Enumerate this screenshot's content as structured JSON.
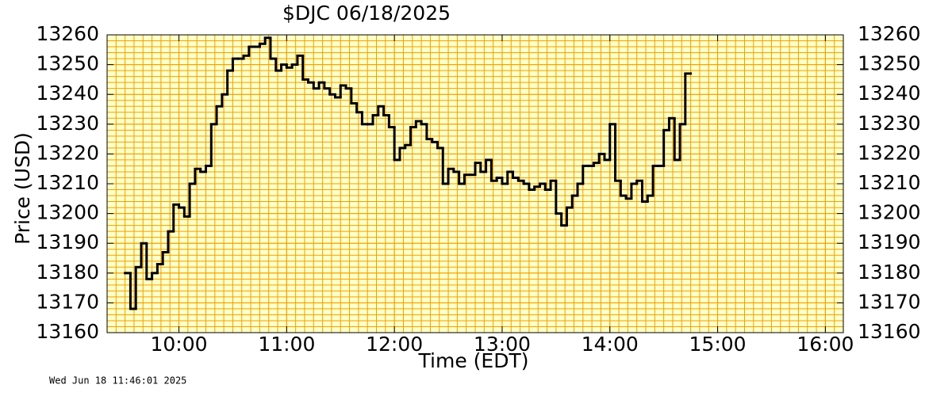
{
  "chart_data": {
    "type": "step",
    "title": "$DJC  06/18/2025",
    "x_label": "Time (EDT)",
    "y_label": "Price (USD)",
    "timestamp": "Wed Jun 18 11:46:01 2025",
    "color": "#000000",
    "grid": true,
    "grid_color": "#f0a000",
    "plot_background": "#ffffc8",
    "x_minor_step_minutes": 5,
    "y_minor_step": 2,
    "xlim": [
      "09:20",
      "16:10"
    ],
    "xticks": [
      "10:00",
      "11:00",
      "12:00",
      "13:00",
      "14:00",
      "15:00",
      "16:00"
    ],
    "ylim": [
      13160,
      13260
    ],
    "yticks": [
      13160,
      13170,
      13180,
      13190,
      13200,
      13210,
      13220,
      13230,
      13240,
      13250,
      13260
    ],
    "x": [
      "09:30",
      "09:33",
      "09:36",
      "09:39",
      "09:42",
      "09:45",
      "09:48",
      "09:51",
      "09:54",
      "09:57",
      "10:00",
      "10:03",
      "10:06",
      "10:09",
      "10:12",
      "10:15",
      "10:18",
      "10:21",
      "10:24",
      "10:27",
      "10:30",
      "10:33",
      "10:36",
      "10:39",
      "10:42",
      "10:45",
      "10:48",
      "10:51",
      "10:54",
      "10:57",
      "11:00",
      "11:03",
      "11:06",
      "11:09",
      "11:12",
      "11:15",
      "11:18",
      "11:21",
      "11:24",
      "11:27",
      "11:30",
      "11:33",
      "11:36",
      "11:39",
      "11:42",
      "11:45",
      "11:48",
      "11:51",
      "11:54",
      "11:57",
      "12:00",
      "12:03",
      "12:06",
      "12:09",
      "12:12",
      "12:15",
      "12:18",
      "12:21",
      "12:24",
      "12:27",
      "12:30",
      "12:33",
      "12:36",
      "12:39",
      "12:42",
      "12:45",
      "12:48",
      "12:51",
      "12:54",
      "12:57",
      "13:00",
      "13:03",
      "13:06",
      "13:09",
      "13:12",
      "13:15",
      "13:18",
      "13:21",
      "13:24",
      "13:27",
      "13:30",
      "13:33",
      "13:36",
      "13:39",
      "13:42",
      "13:45",
      "13:48",
      "13:51",
      "13:54",
      "13:57",
      "14:00",
      "14:03",
      "14:06",
      "14:09",
      "14:12",
      "14:15",
      "14:18",
      "14:21",
      "14:24",
      "14:27",
      "14:30",
      "14:33",
      "14:36",
      "14:39",
      "14:42"
    ],
    "values": [
      13180,
      13168,
      13182,
      13190,
      13178,
      13180,
      13183,
      13187,
      13194,
      13203,
      13202,
      13199,
      13210,
      13215,
      13214,
      13216,
      13230,
      13236,
      13240,
      13248,
      13252,
      13252,
      13253,
      13256,
      13256,
      13257,
      13259,
      13252,
      13248,
      13250,
      13249,
      13250,
      13253,
      13245,
      13244,
      13242,
      13244,
      13242,
      13240,
      13239,
      13243,
      13242,
      13237,
      13234,
      13230,
      13230,
      13233,
      13236,
      13233,
      13229,
      13218,
      13222,
      13223,
      13229,
      13231,
      13230,
      13225,
      13224,
      13222,
      13210,
      13215,
      13214,
      13210,
      13213,
      13213,
      13217,
      13214,
      13218,
      13211,
      13212,
      13210,
      13214,
      13212,
      13211,
      13210,
      13208,
      13209,
      13210,
      13208,
      13211,
      13200,
      13196,
      13202,
      13206,
      13210,
      13216,
      13216,
      13217,
      13220,
      13218,
      13230,
      13211,
      13206,
      13205,
      13210,
      13211,
      13204,
      13206,
      13216,
      13216,
      13228,
      13232,
      13218,
      13230,
      13247
    ]
  }
}
